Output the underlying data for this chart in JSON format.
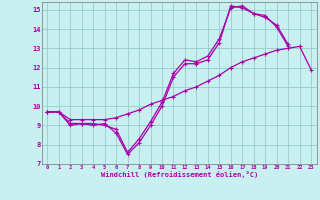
{
  "xlabel": "Windchill (Refroidissement éolien,°C)",
  "bg_color": "#c8f0f0",
  "line_color": "#aa00aa",
  "grid_color": "#99cccc",
  "xlim": [
    -0.5,
    23.5
  ],
  "ylim": [
    7,
    15.4
  ],
  "yticks": [
    7,
    8,
    9,
    10,
    11,
    12,
    13,
    14,
    15
  ],
  "xticks": [
    0,
    1,
    2,
    3,
    4,
    5,
    6,
    7,
    8,
    9,
    10,
    11,
    12,
    13,
    14,
    15,
    16,
    17,
    18,
    19,
    20,
    21,
    22,
    23
  ],
  "line1_x": [
    0,
    1,
    2,
    3,
    4,
    5,
    6,
    7,
    8,
    9,
    10,
    11,
    12,
    13,
    14,
    15,
    16,
    17,
    18,
    19,
    20,
    21
  ],
  "line1_y": [
    9.7,
    9.7,
    9.1,
    9.1,
    9.0,
    9.1,
    8.6,
    7.5,
    8.1,
    9.0,
    10.0,
    11.5,
    12.2,
    12.2,
    12.4,
    13.3,
    15.2,
    15.1,
    14.8,
    14.7,
    14.1,
    13.1
  ],
  "line2_x": [
    0,
    1,
    2,
    3,
    4,
    5,
    6,
    7,
    8,
    9,
    10,
    11,
    12,
    13,
    14,
    15,
    16,
    17,
    18,
    19,
    20,
    21
  ],
  "line2_y": [
    9.7,
    9.7,
    9.0,
    9.1,
    9.1,
    9.0,
    8.8,
    7.6,
    8.3,
    9.2,
    10.2,
    11.7,
    12.4,
    12.3,
    12.6,
    13.5,
    15.1,
    15.2,
    14.8,
    14.6,
    14.2,
    13.2
  ],
  "line3_x": [
    0,
    1,
    2,
    3,
    4,
    5,
    6,
    7,
    8,
    9,
    10,
    11,
    12,
    13,
    14,
    15,
    16,
    17,
    18,
    19,
    20,
    21,
    22,
    23
  ],
  "line3_y": [
    9.7,
    9.7,
    9.3,
    9.3,
    9.3,
    9.3,
    9.4,
    9.6,
    9.8,
    10.1,
    10.3,
    10.5,
    10.8,
    11.0,
    11.3,
    11.6,
    12.0,
    12.3,
    12.5,
    12.7,
    12.9,
    13.0,
    13.1,
    11.9
  ]
}
